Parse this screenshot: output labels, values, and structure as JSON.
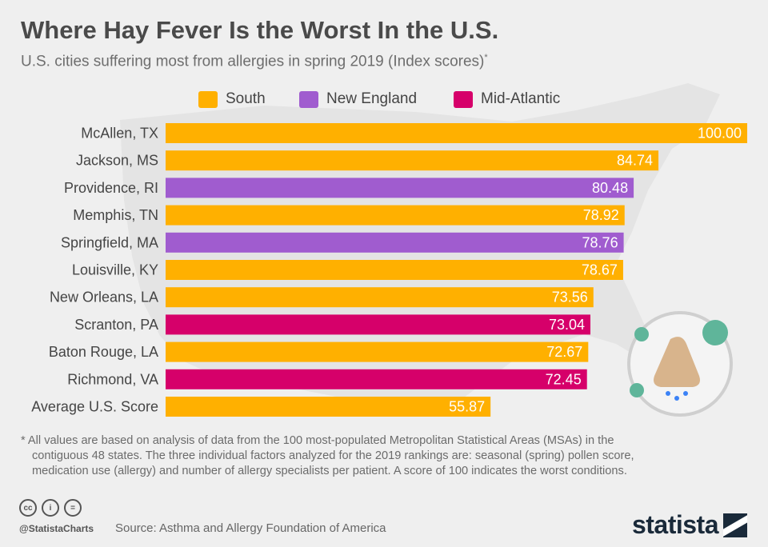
{
  "header": {
    "title": "Where Hay Fever Is the Worst In the U.S.",
    "subtitle": "U.S. cities suffering most from allergies in spring 2019 (Index scores)",
    "subtitle_marker": "*"
  },
  "legend": {
    "items": [
      {
        "label": "South",
        "color": "#ffb000"
      },
      {
        "label": "New England",
        "color": "#a05ccf"
      },
      {
        "label": "Mid-Atlantic",
        "color": "#d6006a"
      }
    ]
  },
  "chart_data": {
    "type": "bar",
    "orientation": "horizontal",
    "title": "Where Hay Fever Is the Worst In the U.S.",
    "xlabel": "",
    "ylabel": "",
    "xlim": [
      0,
      100
    ],
    "categories": [
      "McAllen, TX",
      "Jackson, MS",
      "Providence, RI",
      "Memphis, TN",
      "Springfield, MA",
      "Louisville, KY",
      "New Orleans, LA",
      "Scranton, PA",
      "Baton Rouge, LA",
      "Richmond, VA",
      "Average U.S. Score"
    ],
    "values": [
      100.0,
      84.74,
      80.48,
      78.92,
      78.76,
      78.67,
      73.56,
      73.04,
      72.67,
      72.45,
      55.87
    ],
    "value_labels": [
      "100.00",
      "84.74",
      "80.48",
      "78.92",
      "78.76",
      "78.67",
      "73.56",
      "73.04",
      "72.67",
      "72.45",
      "55.87"
    ],
    "regions": [
      "South",
      "South",
      "New England",
      "South",
      "New England",
      "South",
      "South",
      "Mid-Atlantic",
      "South",
      "Mid-Atlantic",
      "South"
    ],
    "colors": [
      "#ffb000",
      "#ffb000",
      "#a05ccf",
      "#ffb000",
      "#a05ccf",
      "#ffb000",
      "#ffb000",
      "#d6006a",
      "#ffb000",
      "#d6006a",
      "#ffb000"
    ]
  },
  "footnote": {
    "line1": "* All values are based on analysis of data from the 100 most-populated Metropolitan Statistical Areas (MSAs) in the",
    "line2": "contiguous 48 states. The three individual factors analyzed for the 2019 rankings are: seasonal (spring) pollen score,",
    "line3": "medication use (allergy) and number of allergy specialists per patient. A score of 100 indicates the worst conditions."
  },
  "footer": {
    "cc_labels": [
      "cc",
      "i",
      "="
    ],
    "handle": "@StatistaCharts",
    "source": "Source: Asthma and Allergy Foundation of America",
    "brand": "statista"
  },
  "icons": {
    "illustration": "nose-virus-icon",
    "cc": "creative-commons-icon",
    "by": "attribution-icon",
    "nd": "no-derivatives-icon",
    "brand_mark": "statista-logo-icon"
  }
}
